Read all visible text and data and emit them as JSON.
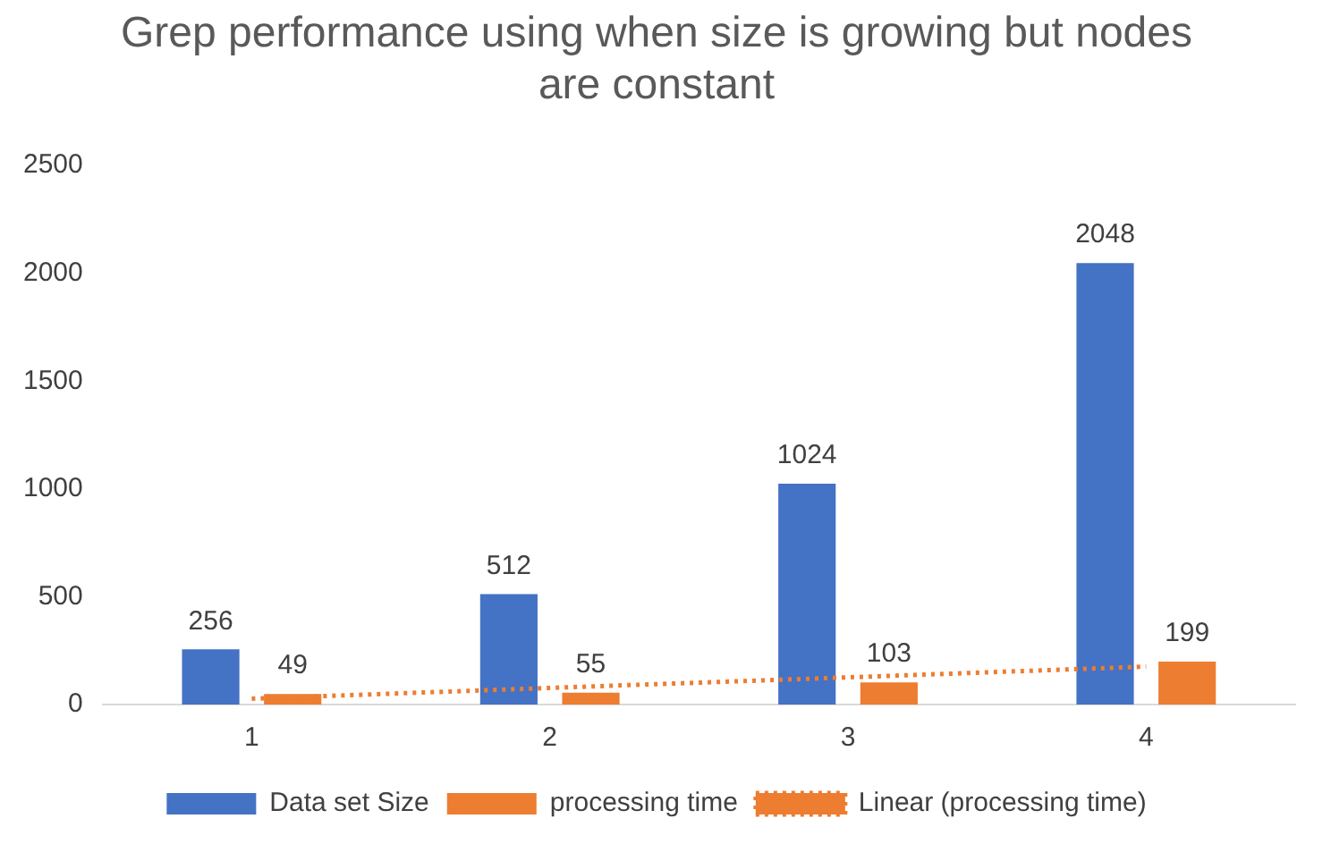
{
  "chart_data": {
    "type": "bar",
    "title": "Grep performance using when size is growing but nodes are constant",
    "categories": [
      "1",
      "2",
      "3",
      "4"
    ],
    "series": [
      {
        "name": "Data set Size",
        "color": "#4472c4",
        "values": [
          256,
          512,
          1024,
          2048
        ],
        "value_labels": [
          "256",
          "512",
          "1024",
          "2048"
        ]
      },
      {
        "name": "processing time",
        "color": "#ed7d31",
        "values": [
          49,
          55,
          103,
          199
        ],
        "value_labels": [
          "49",
          "55",
          "103",
          "199"
        ]
      },
      {
        "name": "Linear (processing time)",
        "color": "#ed7d31",
        "type": "line",
        "line_style": "dotted",
        "values": [
          27,
          77,
          126,
          176
        ]
      }
    ],
    "ylim": [
      0,
      2500
    ],
    "yticks": [
      0,
      500,
      1000,
      1500,
      2000,
      2500
    ],
    "grid": false,
    "legend": "bottom"
  }
}
